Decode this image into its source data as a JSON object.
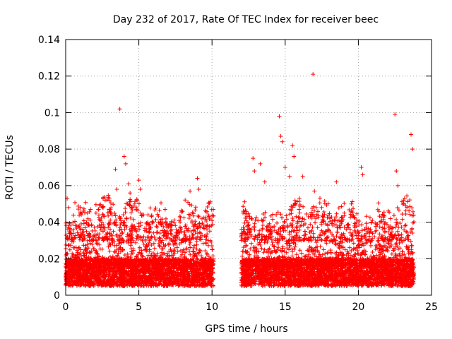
{
  "chart_data": {
    "type": "scatter",
    "title": "Day 232 of 2017, Rate Of TEC Index for receiver beec",
    "xlabel": "GPS time / hours",
    "ylabel": "ROTI / TECUs",
    "xlim": [
      0,
      25
    ],
    "ylim": [
      0,
      0.14
    ],
    "xticks": [
      0,
      5,
      10,
      15,
      20,
      25
    ],
    "xtick_labels": [
      "0",
      "5",
      "10",
      "15",
      "20",
      "25"
    ],
    "yticks": [
      0,
      0.02,
      0.04,
      0.06,
      0.08,
      0.1,
      0.12,
      0.14
    ],
    "ytick_labels": [
      "0",
      "0.02",
      "0.04",
      "0.06",
      "0.08",
      "0.1",
      "0.12",
      "0.14"
    ],
    "grid": true,
    "marker": "+",
    "color": "#ff0000",
    "series": [
      {
        "name": "ROTI",
        "segments": [
          {
            "x_start": 0.0,
            "x_end": 10.1,
            "gap_note": "data present"
          },
          {
            "x_start": 12.0,
            "x_end": 23.8,
            "gap_note": "data present"
          }
        ],
        "baseline_range": [
          0.005,
          0.02
        ],
        "typical_peak_range": [
          0.02,
          0.05
        ],
        "outliers": [
          {
            "x": 0.1,
            "y": 0.053
          },
          {
            "x": 0.2,
            "y": 0.048
          },
          {
            "x": 1.7,
            "y": 0.047
          },
          {
            "x": 2.7,
            "y": 0.052
          },
          {
            "x": 3.4,
            "y": 0.069
          },
          {
            "x": 3.5,
            "y": 0.058
          },
          {
            "x": 3.7,
            "y": 0.102
          },
          {
            "x": 4.0,
            "y": 0.076
          },
          {
            "x": 4.1,
            "y": 0.072
          },
          {
            "x": 4.3,
            "y": 0.061
          },
          {
            "x": 4.4,
            "y": 0.056
          },
          {
            "x": 5.0,
            "y": 0.063
          },
          {
            "x": 5.1,
            "y": 0.058
          },
          {
            "x": 6.8,
            "y": 0.047
          },
          {
            "x": 8.5,
            "y": 0.057
          },
          {
            "x": 9.0,
            "y": 0.064
          },
          {
            "x": 9.1,
            "y": 0.058
          },
          {
            "x": 12.8,
            "y": 0.075
          },
          {
            "x": 12.9,
            "y": 0.068
          },
          {
            "x": 13.3,
            "y": 0.072
          },
          {
            "x": 13.6,
            "y": 0.062
          },
          {
            "x": 14.6,
            "y": 0.098
          },
          {
            "x": 14.7,
            "y": 0.087
          },
          {
            "x": 14.8,
            "y": 0.084
          },
          {
            "x": 15.0,
            "y": 0.07
          },
          {
            "x": 15.3,
            "y": 0.065
          },
          {
            "x": 15.5,
            "y": 0.082
          },
          {
            "x": 15.6,
            "y": 0.076
          },
          {
            "x": 16.2,
            "y": 0.065
          },
          {
            "x": 16.9,
            "y": 0.121
          },
          {
            "x": 17.0,
            "y": 0.057
          },
          {
            "x": 18.5,
            "y": 0.062
          },
          {
            "x": 20.2,
            "y": 0.07
          },
          {
            "x": 20.3,
            "y": 0.066
          },
          {
            "x": 22.5,
            "y": 0.099
          },
          {
            "x": 22.6,
            "y": 0.068
          },
          {
            "x": 22.7,
            "y": 0.06
          },
          {
            "x": 23.6,
            "y": 0.088
          },
          {
            "x": 23.7,
            "y": 0.08
          }
        ]
      }
    ]
  }
}
